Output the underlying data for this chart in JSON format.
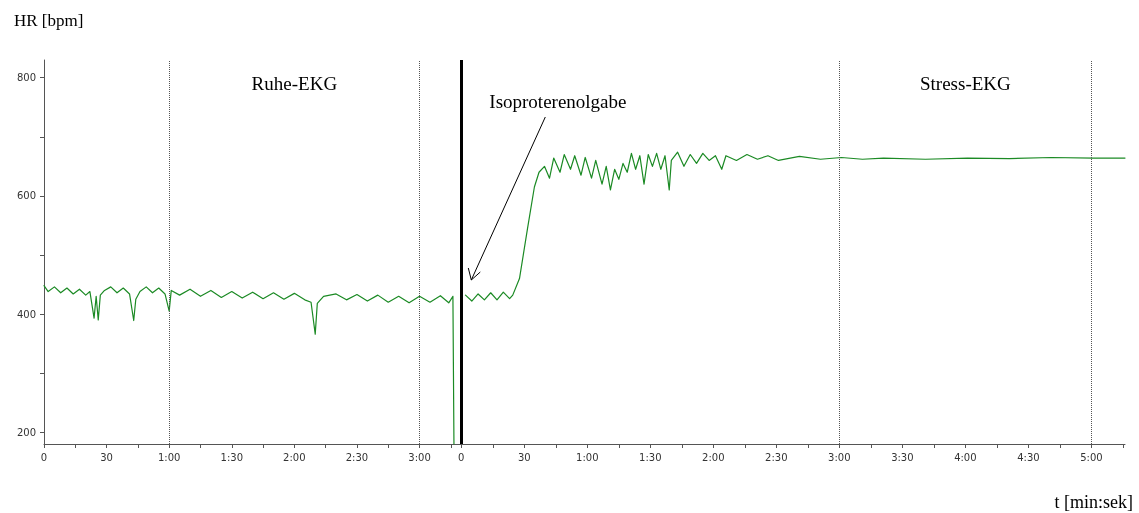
{
  "chart_data": [
    {
      "type": "line",
      "ylabel": "HR [bpm]",
      "x": [
        0,
        2,
        5,
        8,
        11,
        14,
        17,
        20,
        22,
        24,
        25,
        26,
        27,
        29,
        32,
        35,
        38,
        41,
        43,
        44,
        46,
        49,
        52,
        55,
        58,
        60,
        61,
        65,
        70,
        75,
        80,
        85,
        90,
        95,
        100,
        105,
        110,
        115,
        120,
        125,
        128,
        130,
        131,
        134,
        140,
        145,
        150,
        155,
        160,
        165,
        170,
        175,
        180,
        185,
        190,
        194,
        196,
        196.5
      ],
      "series": [
        {
          "color": "#1b8a24",
          "values": [
            448,
            438,
            446,
            436,
            444,
            434,
            442,
            432,
            438,
            393,
            430,
            390,
            432,
            440,
            446,
            436,
            444,
            434,
            389,
            425,
            438,
            446,
            436,
            444,
            434,
            405,
            440,
            432,
            442,
            430,
            440,
            428,
            438,
            427,
            437,
            426,
            436,
            425,
            435,
            424,
            420,
            366,
            418,
            430,
            434,
            424,
            433,
            422,
            432,
            420,
            430,
            419,
            430,
            420,
            431,
            419,
            430,
            180
          ]
        }
      ],
      "xlim": [
        0,
        197
      ],
      "ylim": [
        180,
        830
      ],
      "yticks": [
        200,
        {
          "value": 300,
          "label": null
        },
        400,
        {
          "value": 500,
          "label": null
        },
        600,
        {
          "value": 700,
          "label": null
        },
        800
      ],
      "xticks": [
        {
          "value": 0,
          "label": "0"
        },
        {
          "value": 15,
          "label": null
        },
        {
          "value": 30,
          "label": "30"
        },
        {
          "value": 45,
          "label": null
        },
        {
          "value": 60,
          "label": "1:00"
        },
        {
          "value": 75,
          "label": null
        },
        {
          "value": 90,
          "label": "1:30"
        },
        {
          "value": 105,
          "label": null
        },
        {
          "value": 120,
          "label": "2:00"
        },
        {
          "value": 135,
          "label": null
        },
        {
          "value": 150,
          "label": "2:30"
        },
        {
          "value": 165,
          "label": null
        },
        {
          "value": 180,
          "label": "3:00"
        },
        {
          "value": 195,
          "label": null
        }
      ],
      "ref_lines": [
        {
          "axis": "x",
          "value": 60,
          "color": "#555555",
          "line_style": "dotted"
        },
        {
          "axis": "x",
          "value": 180,
          "color": "#555555",
          "line_style": "dotted"
        }
      ],
      "annotations": [
        "Ruhe-EKG"
      ],
      "grid": false,
      "marker": "none",
      "line_style": "solid"
    },
    {
      "type": "line",
      "xlabel": "t [min:sek]",
      "x": [
        2,
        5,
        8,
        11,
        14,
        17,
        20,
        23,
        24.5,
        27.7,
        31.5,
        34.8,
        37,
        39.6,
        42,
        44,
        47,
        49,
        52,
        54,
        57,
        59,
        62,
        64,
        67,
        69,
        71,
        73,
        75,
        77,
        79,
        81,
        83,
        85,
        87,
        89,
        91,
        93,
        95,
        97,
        99,
        100,
        103,
        106,
        109,
        112,
        115,
        118,
        121,
        124,
        126,
        131,
        136,
        141,
        146,
        151,
        161,
        171,
        181,
        191,
        201,
        221,
        241,
        261,
        281,
        301,
        316
      ],
      "series": [
        {
          "color": "#1b8a24",
          "values": [
            432,
            422,
            434,
            424,
            436,
            424,
            437,
            426,
            432,
            460,
            544,
            615,
            640,
            650,
            630,
            664,
            640,
            670,
            645,
            668,
            635,
            665,
            630,
            660,
            620,
            650,
            610,
            645,
            628,
            655,
            640,
            672,
            645,
            668,
            620,
            670,
            650,
            672,
            645,
            668,
            610,
            660,
            674,
            650,
            670,
            655,
            672,
            660,
            668,
            645,
            668,
            660,
            670,
            662,
            668,
            660,
            667,
            662,
            665,
            662,
            664,
            662,
            664,
            663,
            665,
            664,
            664
          ]
        }
      ],
      "xlim": [
        -3,
        316
      ],
      "ylim": [
        180,
        830
      ],
      "tick_labels": "x",
      "xticks": [
        {
          "value": 0,
          "label": "0"
        },
        {
          "value": 15,
          "label": null
        },
        {
          "value": 30,
          "label": "30"
        },
        {
          "value": 45,
          "label": null
        },
        {
          "value": 60,
          "label": "1:00"
        },
        {
          "value": 75,
          "label": null
        },
        {
          "value": 90,
          "label": "1:30"
        },
        {
          "value": 105,
          "label": null
        },
        {
          "value": 120,
          "label": "2:00"
        },
        {
          "value": 135,
          "label": null
        },
        {
          "value": 150,
          "label": "2:30"
        },
        {
          "value": 165,
          "label": null
        },
        {
          "value": 180,
          "label": "3:00"
        },
        {
          "value": 195,
          "label": null
        },
        {
          "value": 210,
          "label": "3:30"
        },
        {
          "value": 225,
          "label": null
        },
        {
          "value": 240,
          "label": "4:00"
        },
        {
          "value": 255,
          "label": null
        },
        {
          "value": 270,
          "label": "4:30"
        },
        {
          "value": 285,
          "label": null
        },
        {
          "value": 300,
          "label": "5:00"
        },
        {
          "value": 315,
          "label": null
        }
      ],
      "ref_lines": [
        {
          "axis": "x",
          "value": 0,
          "label": "Isoproterenolgabe",
          "color": "#000000",
          "line_style": "solid"
        },
        {
          "axis": "x",
          "value": 180,
          "color": "#555555",
          "line_style": "dotted"
        },
        {
          "axis": "x",
          "value": 300,
          "color": "#555555",
          "line_style": "dotted"
        }
      ],
      "annotations": [
        "Stress-EKG"
      ],
      "grid": false,
      "marker": "none",
      "line_style": "solid"
    }
  ]
}
